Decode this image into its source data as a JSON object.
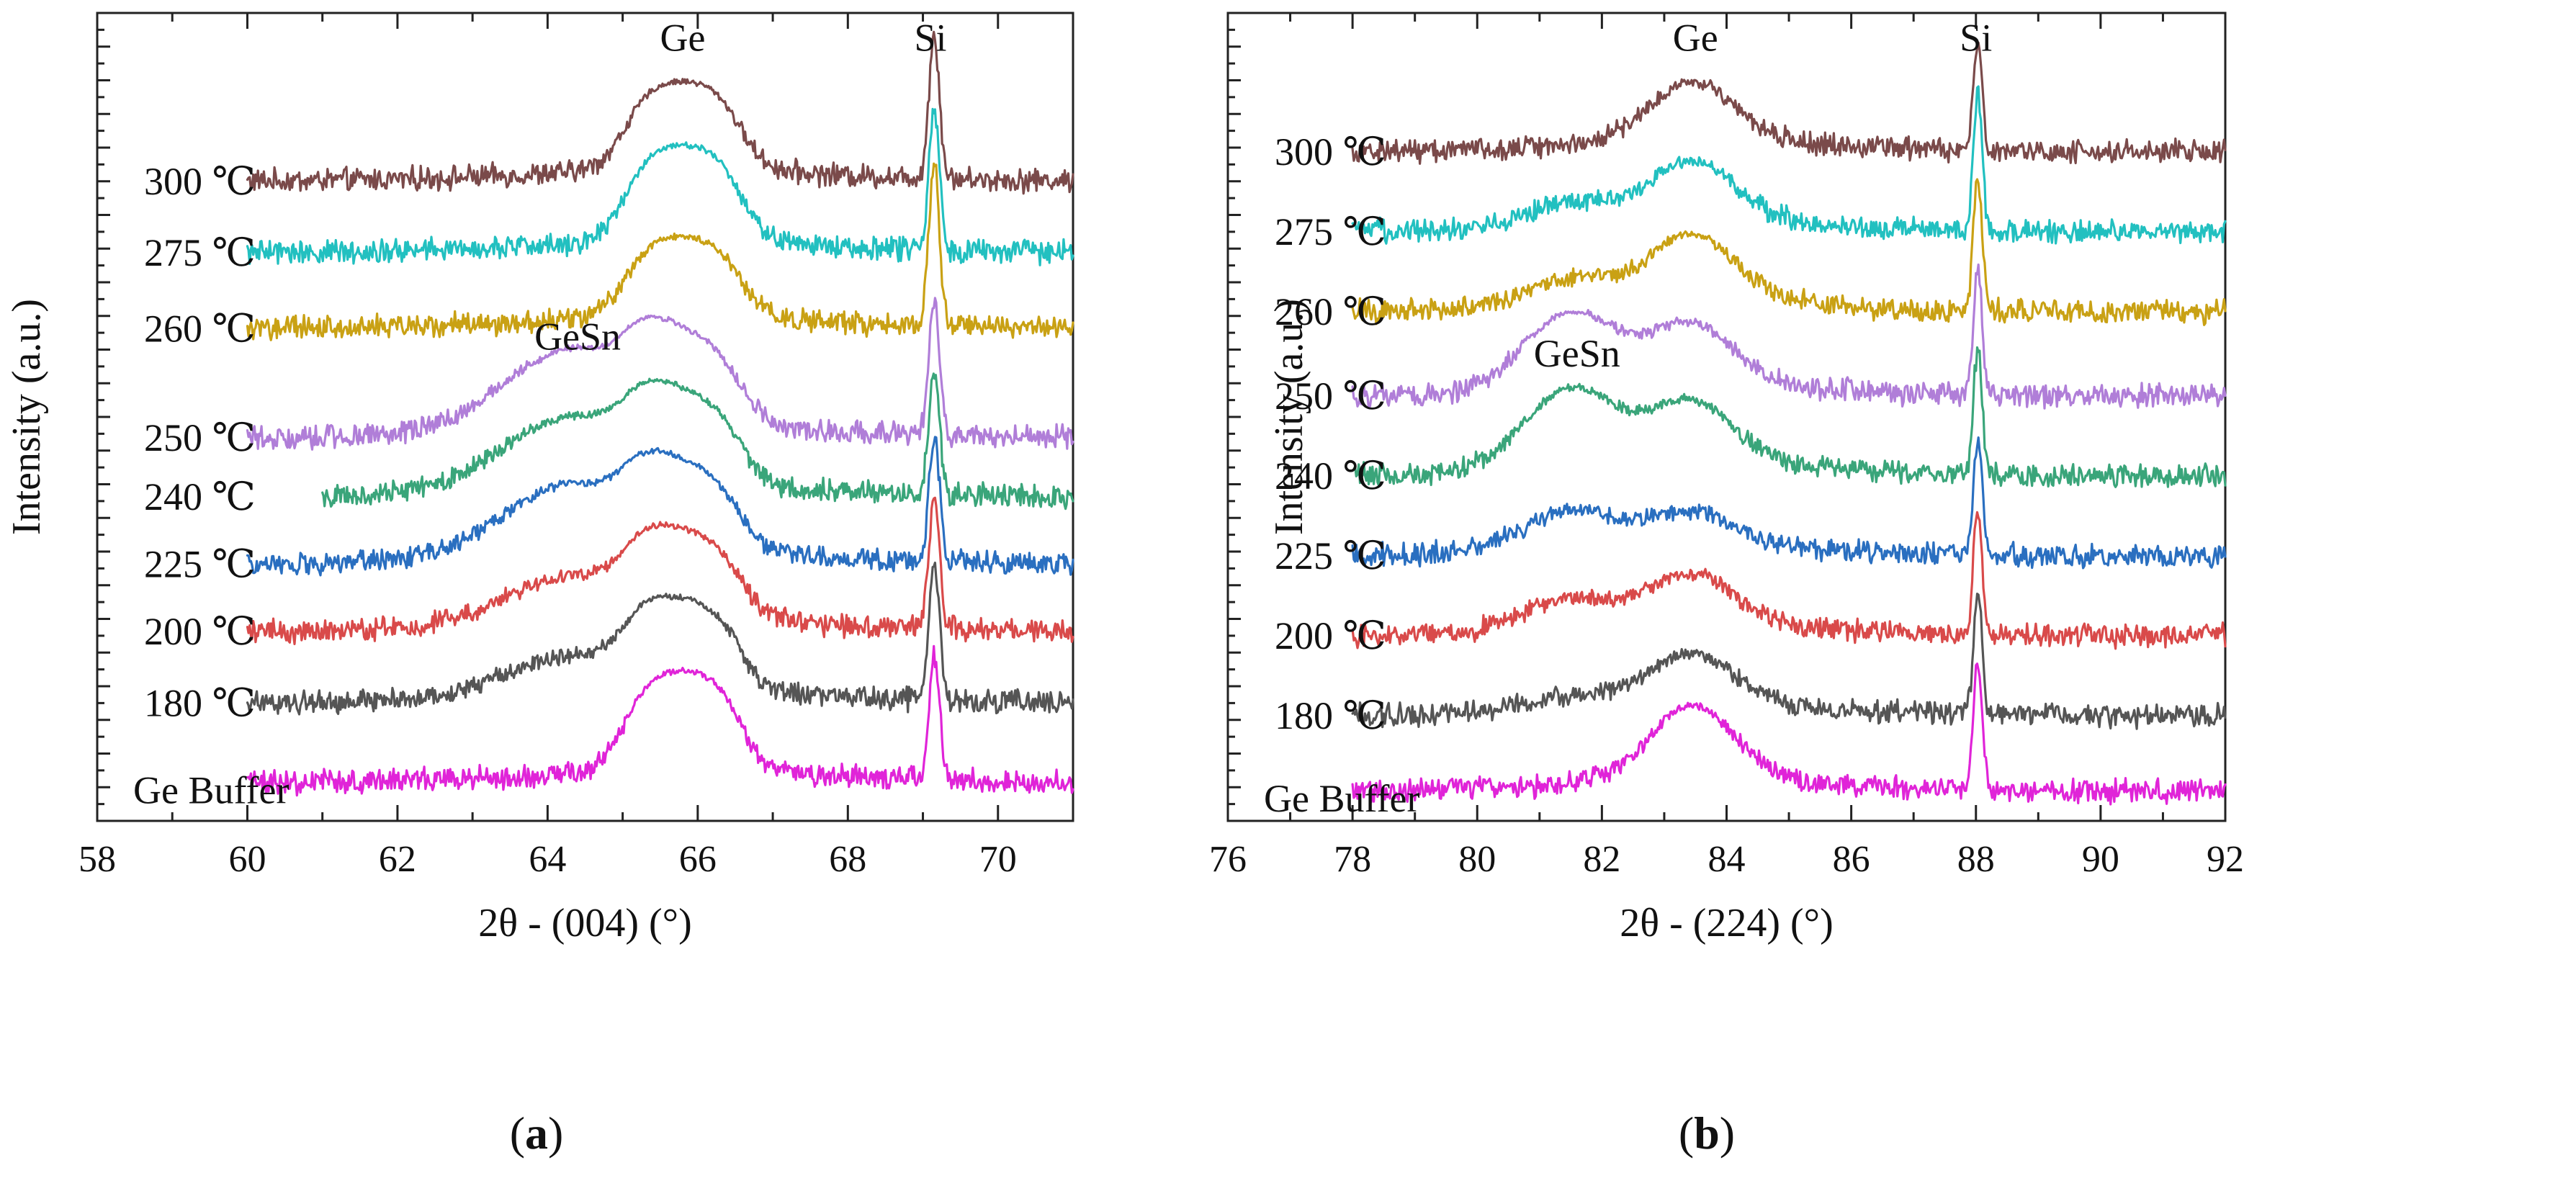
{
  "chart_data": [
    {
      "type": "line",
      "panel": "a",
      "caption_open": "(",
      "caption_letter": "a",
      "caption_close": ")",
      "xlabel": "2θ - (004) (°)",
      "ylabel": "Intensity (a.u.)",
      "xlim": [
        58,
        71
      ],
      "xticks": [
        58,
        60,
        62,
        64,
        66,
        68,
        70
      ],
      "offsets_label": [
        "300 ℃",
        "275 ℃",
        "260 ℃",
        "250 ℃",
        "240 ℃",
        "225 ℃",
        "200 ℃",
        "180 ℃",
        "Ge Buffer"
      ],
      "annotations": [
        {
          "text": "Ge",
          "x": 65.8,
          "level": 9.15
        },
        {
          "text": "Si",
          "x": 69.1,
          "level": 9.15
        },
        {
          "text": "GeSn",
          "x": 64.4,
          "level": 5.6
        }
      ],
      "peaks": {
        "ge": 65.8,
        "si": 69.15,
        "gesn": 64.3
      },
      "series": [
        {
          "name": "300 ℃",
          "color": "#7a4a4a",
          "baseline": 7.6,
          "x_start": 60.0,
          "ge_height": 1.1,
          "gesn_height": 0.0,
          "si_height": 1.7
        },
        {
          "name": "275 ℃",
          "color": "#22c0c0",
          "baseline": 6.75,
          "x_start": 60.0,
          "ge_height": 1.2,
          "gesn_height": 0.0,
          "si_height": 1.7
        },
        {
          "name": "260 ℃",
          "color": "#c9a114",
          "baseline": 5.85,
          "x_start": 60.0,
          "ge_height": 1.0,
          "gesn_height": 0.0,
          "si_height": 1.9
        },
        {
          "name": "250 ℃",
          "color": "#b07ed8",
          "baseline": 4.55,
          "x_start": 60.0,
          "ge_height": 1.0,
          "gesn_height": 0.95,
          "si_height": 1.6
        },
        {
          "name": "240 ℃",
          "color": "#3aa57a",
          "baseline": 3.85,
          "x_start": 61.0,
          "ge_height": 1.0,
          "gesn_height": 0.85,
          "si_height": 1.5
        },
        {
          "name": "225 ℃",
          "color": "#2a6fc0",
          "baseline": 3.05,
          "x_start": 60.0,
          "ge_height": 0.95,
          "gesn_height": 0.85,
          "si_height": 1.5
        },
        {
          "name": "200 ℃",
          "color": "#d94a4a",
          "baseline": 2.25,
          "x_start": 60.0,
          "ge_height": 1.0,
          "gesn_height": 0.55,
          "si_height": 1.55
        },
        {
          "name": "180 ℃",
          "color": "#555555",
          "baseline": 1.4,
          "x_start": 60.0,
          "ge_height": 1.05,
          "gesn_height": 0.45,
          "si_height": 1.6
        },
        {
          "name": "Ge Buffer",
          "color": "#e024d8",
          "baseline": 0.45,
          "x_start": 60.0,
          "ge_height": 1.25,
          "gesn_height": 0.0,
          "si_height": 1.5
        }
      ]
    },
    {
      "type": "line",
      "panel": "b",
      "caption_open": "(",
      "caption_letter": "b",
      "caption_close": ")",
      "xlabel": "2θ - (224) (°)",
      "ylabel": "Intensity (a.u.)",
      "xlim": [
        76,
        92
      ],
      "xticks": [
        76,
        78,
        80,
        82,
        84,
        86,
        88,
        90,
        92
      ],
      "offsets_label": [
        "300 ℃",
        "275 ℃",
        "260 ℃",
        "250 ℃",
        "240 ℃",
        "225 ℃",
        "200 ℃",
        "180 ℃",
        "Ge Buffer"
      ],
      "annotations": [
        {
          "text": "Ge",
          "x": 83.5,
          "level": 9.15
        },
        {
          "text": "Si",
          "x": 88.0,
          "level": 9.15
        },
        {
          "text": "GeSn",
          "x": 81.6,
          "level": 5.4
        }
      ],
      "peaks": {
        "ge": 83.45,
        "si": 88.03,
        "gesn": 81.5
      },
      "series": [
        {
          "name": "300 ℃",
          "color": "#7a4a4a",
          "baseline": 7.95,
          "x_start": 78.0,
          "ge_height": 1.0,
          "gesn_height": 0.0,
          "si_height": 1.3
        },
        {
          "name": "275 ℃",
          "color": "#22c0c0",
          "baseline": 7.0,
          "x_start": 78.0,
          "ge_height": 1.0,
          "gesn_height": 0.25,
          "si_height": 1.6
        },
        {
          "name": "260 ℃",
          "color": "#c9a114",
          "baseline": 6.05,
          "x_start": 78.0,
          "ge_height": 1.1,
          "gesn_height": 0.3,
          "si_height": 1.6
        },
        {
          "name": "250 ℃",
          "color": "#b07ed8",
          "baseline": 5.05,
          "x_start": 78.0,
          "ge_height": 1.0,
          "gesn_height": 0.9,
          "si_height": 1.5
        },
        {
          "name": "240 ℃",
          "color": "#3aa57a",
          "baseline": 4.1,
          "x_start": 78.0,
          "ge_height": 1.05,
          "gesn_height": 0.95,
          "si_height": 1.5
        },
        {
          "name": "225 ℃",
          "color": "#2a6fc0",
          "baseline": 3.15,
          "x_start": 78.0,
          "ge_height": 0.55,
          "gesn_height": 0.45,
          "si_height": 1.3
        },
        {
          "name": "200 ℃",
          "color": "#d94a4a",
          "baseline": 2.2,
          "x_start": 78.0,
          "ge_height": 0.85,
          "gesn_height": 0.35,
          "si_height": 1.5
        },
        {
          "name": "180 ℃",
          "color": "#555555",
          "baseline": 1.25,
          "x_start": 78.0,
          "ge_height": 0.85,
          "gesn_height": 0.15,
          "si_height": 1.4
        },
        {
          "name": "Ge Buffer",
          "color": "#e024d8",
          "baseline": 0.35,
          "x_start": 78.0,
          "ge_height": 1.25,
          "gesn_height": 0.0,
          "si_height": 1.5
        }
      ]
    }
  ]
}
